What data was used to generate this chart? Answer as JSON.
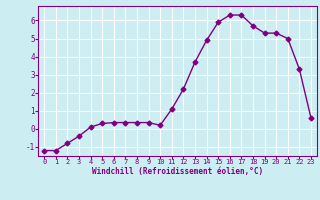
{
  "x": [
    0,
    1,
    2,
    3,
    4,
    5,
    6,
    7,
    8,
    9,
    10,
    11,
    12,
    13,
    14,
    15,
    16,
    17,
    18,
    19,
    20,
    21,
    22,
    23
  ],
  "y": [
    -1.2,
    -1.2,
    -0.8,
    -0.4,
    0.1,
    0.3,
    0.35,
    0.35,
    0.35,
    0.35,
    0.2,
    1.1,
    2.2,
    3.7,
    4.9,
    5.9,
    6.3,
    6.3,
    5.7,
    5.3,
    5.3,
    5.0,
    3.3,
    0.6
  ],
  "line_color": "#800080",
  "marker": "D",
  "markersize": 2.5,
  "linewidth": 1.0,
  "xlabel": "Windchill (Refroidissement éolien,°C)",
  "xlim": [
    -0.5,
    23.5
  ],
  "ylim": [
    -1.5,
    6.8
  ],
  "yticks": [
    -1,
    0,
    1,
    2,
    3,
    4,
    5,
    6
  ],
  "xticks": [
    0,
    1,
    2,
    3,
    4,
    5,
    6,
    7,
    8,
    9,
    10,
    11,
    12,
    13,
    14,
    15,
    16,
    17,
    18,
    19,
    20,
    21,
    22,
    23
  ],
  "bg_color": "#cceef2",
  "grid_color": "#ffffff",
  "tick_color": "#800080",
  "label_color": "#800080",
  "spine_color": "#800080"
}
